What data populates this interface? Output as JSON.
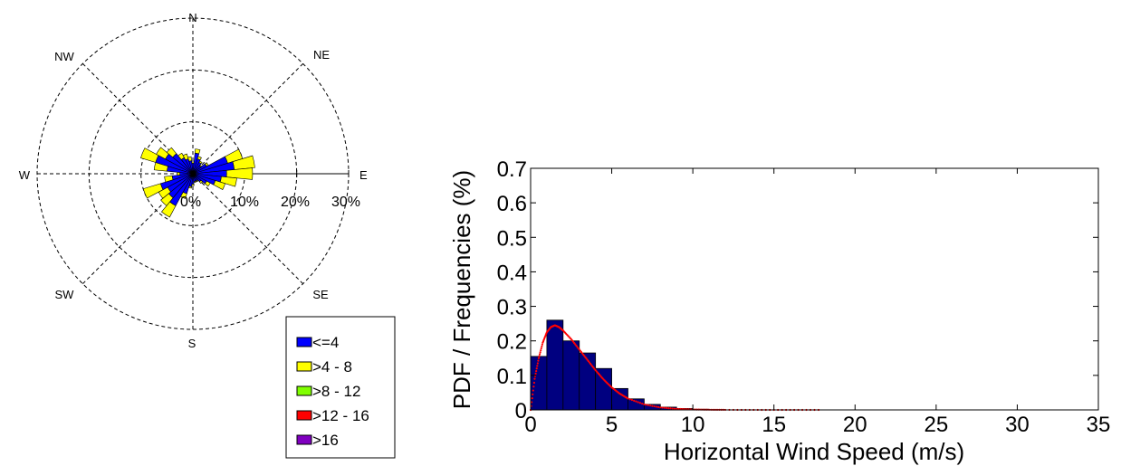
{
  "chart_data": [
    {
      "type": "wind-rose",
      "directions": [
        "N",
        "NE",
        "E",
        "SE",
        "S",
        "SW",
        "W",
        "NW"
      ],
      "radial_ticks": [
        "0%",
        "10%",
        "20%",
        "30%"
      ],
      "radial_range": [
        0,
        30
      ],
      "speed_bins": [
        {
          "label": "<=4",
          "color": "#0000ff"
        },
        {
          "label": ">4 - 8",
          "color": "#ffff00"
        },
        {
          "label": ">8 - 12",
          "color": "#80ff00"
        },
        {
          "label": ">12 - 16",
          "color": "#ff0000"
        },
        {
          "label": ">16",
          "color": "#8000c0"
        }
      ],
      "sectors": [
        {
          "deg": 0,
          "le4": 2.0,
          "gt4": 0.3
        },
        {
          "deg": 11.25,
          "le4": 4.0,
          "gt4": 0.8
        },
        {
          "deg": 22.5,
          "le4": 3.0,
          "gt4": 0.5
        },
        {
          "deg": 33.75,
          "le4": 2.5,
          "gt4": 0.3
        },
        {
          "deg": 45,
          "le4": 2.0,
          "gt4": 0.2
        },
        {
          "deg": 56.25,
          "le4": 3.0,
          "gt4": 0.4
        },
        {
          "deg": 67.5,
          "le4": 7.0,
          "gt4": 3.0
        },
        {
          "deg": 78.75,
          "le4": 8.0,
          "gt4": 4.0
        },
        {
          "deg": 90,
          "le4": 6.5,
          "gt4": 5.0
        },
        {
          "deg": 101.25,
          "le4": 5.5,
          "gt4": 3.0
        },
        {
          "deg": 112.5,
          "le4": 4.5,
          "gt4": 2.0
        },
        {
          "deg": 123.75,
          "le4": 3.0,
          "gt4": 0.8
        },
        {
          "deg": 135,
          "le4": 2.0,
          "gt4": 0.4
        },
        {
          "deg": 146.25,
          "le4": 1.5,
          "gt4": 0.2
        },
        {
          "deg": 157.5,
          "le4": 1.5,
          "gt4": 0.2
        },
        {
          "deg": 168.75,
          "le4": 1.5,
          "gt4": 0.2
        },
        {
          "deg": 180,
          "le4": 2.0,
          "gt4": 0.3
        },
        {
          "deg": 191.25,
          "le4": 2.5,
          "gt4": 0.3
        },
        {
          "deg": 202.5,
          "le4": 4.0,
          "gt4": 1.0
        },
        {
          "deg": 213.75,
          "le4": 7.0,
          "gt4": 2.5
        },
        {
          "deg": 225,
          "le4": 6.0,
          "gt4": 2.0
        },
        {
          "deg": 236.25,
          "le4": 5.5,
          "gt4": 2.0
        },
        {
          "deg": 247.5,
          "le4": 6.5,
          "gt4": 3.5
        },
        {
          "deg": 258.75,
          "le4": 4.0,
          "gt4": 1.5
        },
        {
          "deg": 270,
          "le4": 2.5,
          "gt4": 0.5
        },
        {
          "deg": 281.25,
          "le4": 5.0,
          "gt4": 2.5
        },
        {
          "deg": 292.5,
          "le4": 7.5,
          "gt4": 3.0
        },
        {
          "deg": 303.75,
          "le4": 6.0,
          "gt4": 2.0
        },
        {
          "deg": 315,
          "le4": 5.0,
          "gt4": 1.5
        },
        {
          "deg": 326.25,
          "le4": 3.5,
          "gt4": 1.0
        },
        {
          "deg": 337.5,
          "le4": 3.0,
          "gt4": 1.0
        },
        {
          "deg": 348.75,
          "le4": 2.5,
          "gt4": 0.8
        }
      ]
    },
    {
      "type": "bar",
      "xlabel": "Horizontal Wind Speed (m/s)",
      "ylabel": "PDF / Frequencies (%)",
      "xlim": [
        0,
        35
      ],
      "ylim": [
        0,
        0.7
      ],
      "xticks": [
        0,
        5,
        10,
        15,
        20,
        25,
        30,
        35
      ],
      "yticks": [
        0,
        0.1,
        0.2,
        0.3,
        0.4,
        0.5,
        0.6,
        0.7
      ],
      "bar_color": "#000080",
      "fit_color": "#ff0000",
      "bins": [
        {
          "x0": 0.0,
          "x1": 1.0,
          "value": 0.155
        },
        {
          "x0": 1.0,
          "x1": 2.0,
          "value": 0.26
        },
        {
          "x0": 2.0,
          "x1": 3.0,
          "value": 0.2
        },
        {
          "x0": 3.0,
          "x1": 4.0,
          "value": 0.165
        },
        {
          "x0": 4.0,
          "x1": 5.0,
          "value": 0.12
        },
        {
          "x0": 5.0,
          "x1": 6.0,
          "value": 0.062
        },
        {
          "x0": 6.0,
          "x1": 7.0,
          "value": 0.032
        },
        {
          "x0": 7.0,
          "x1": 8.0,
          "value": 0.016
        },
        {
          "x0": 8.0,
          "x1": 9.0,
          "value": 0.008
        },
        {
          "x0": 9.0,
          "x1": 10.0,
          "value": 0.004
        },
        {
          "x0": 10.0,
          "x1": 11.0,
          "value": 0.002
        },
        {
          "x0": 11.0,
          "x1": 12.0,
          "value": 0.001
        }
      ],
      "fit_curve": {
        "x": [
          0,
          0.25,
          0.5,
          0.75,
          1,
          1.25,
          1.5,
          1.75,
          2,
          2.5,
          3,
          3.5,
          4,
          4.5,
          5,
          5.5,
          6,
          7,
          8,
          9,
          10,
          11,
          12,
          14,
          16,
          18
        ],
        "y": [
          0,
          0.09,
          0.15,
          0.195,
          0.225,
          0.24,
          0.245,
          0.24,
          0.23,
          0.205,
          0.175,
          0.145,
          0.115,
          0.088,
          0.065,
          0.047,
          0.033,
          0.016,
          0.007,
          0.003,
          0.0012,
          0.0005,
          0.0002,
          0.0001,
          5e-05,
          0
        ]
      }
    }
  ]
}
